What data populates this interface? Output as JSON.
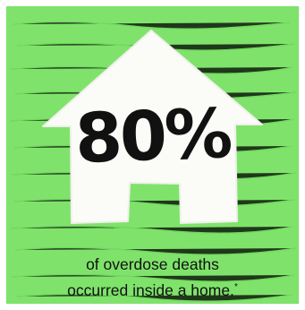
{
  "colors": {
    "background": "#7fe36b",
    "background_texture": "#6fd35d",
    "house": "#fbfbf8",
    "text": "#111111"
  },
  "headline": {
    "percent": "80%"
  },
  "caption": {
    "line1": "of overdose deaths",
    "line2": "occurred inside a home.",
    "footnote_mark": "*"
  },
  "icons": {
    "house": "house-icon"
  }
}
